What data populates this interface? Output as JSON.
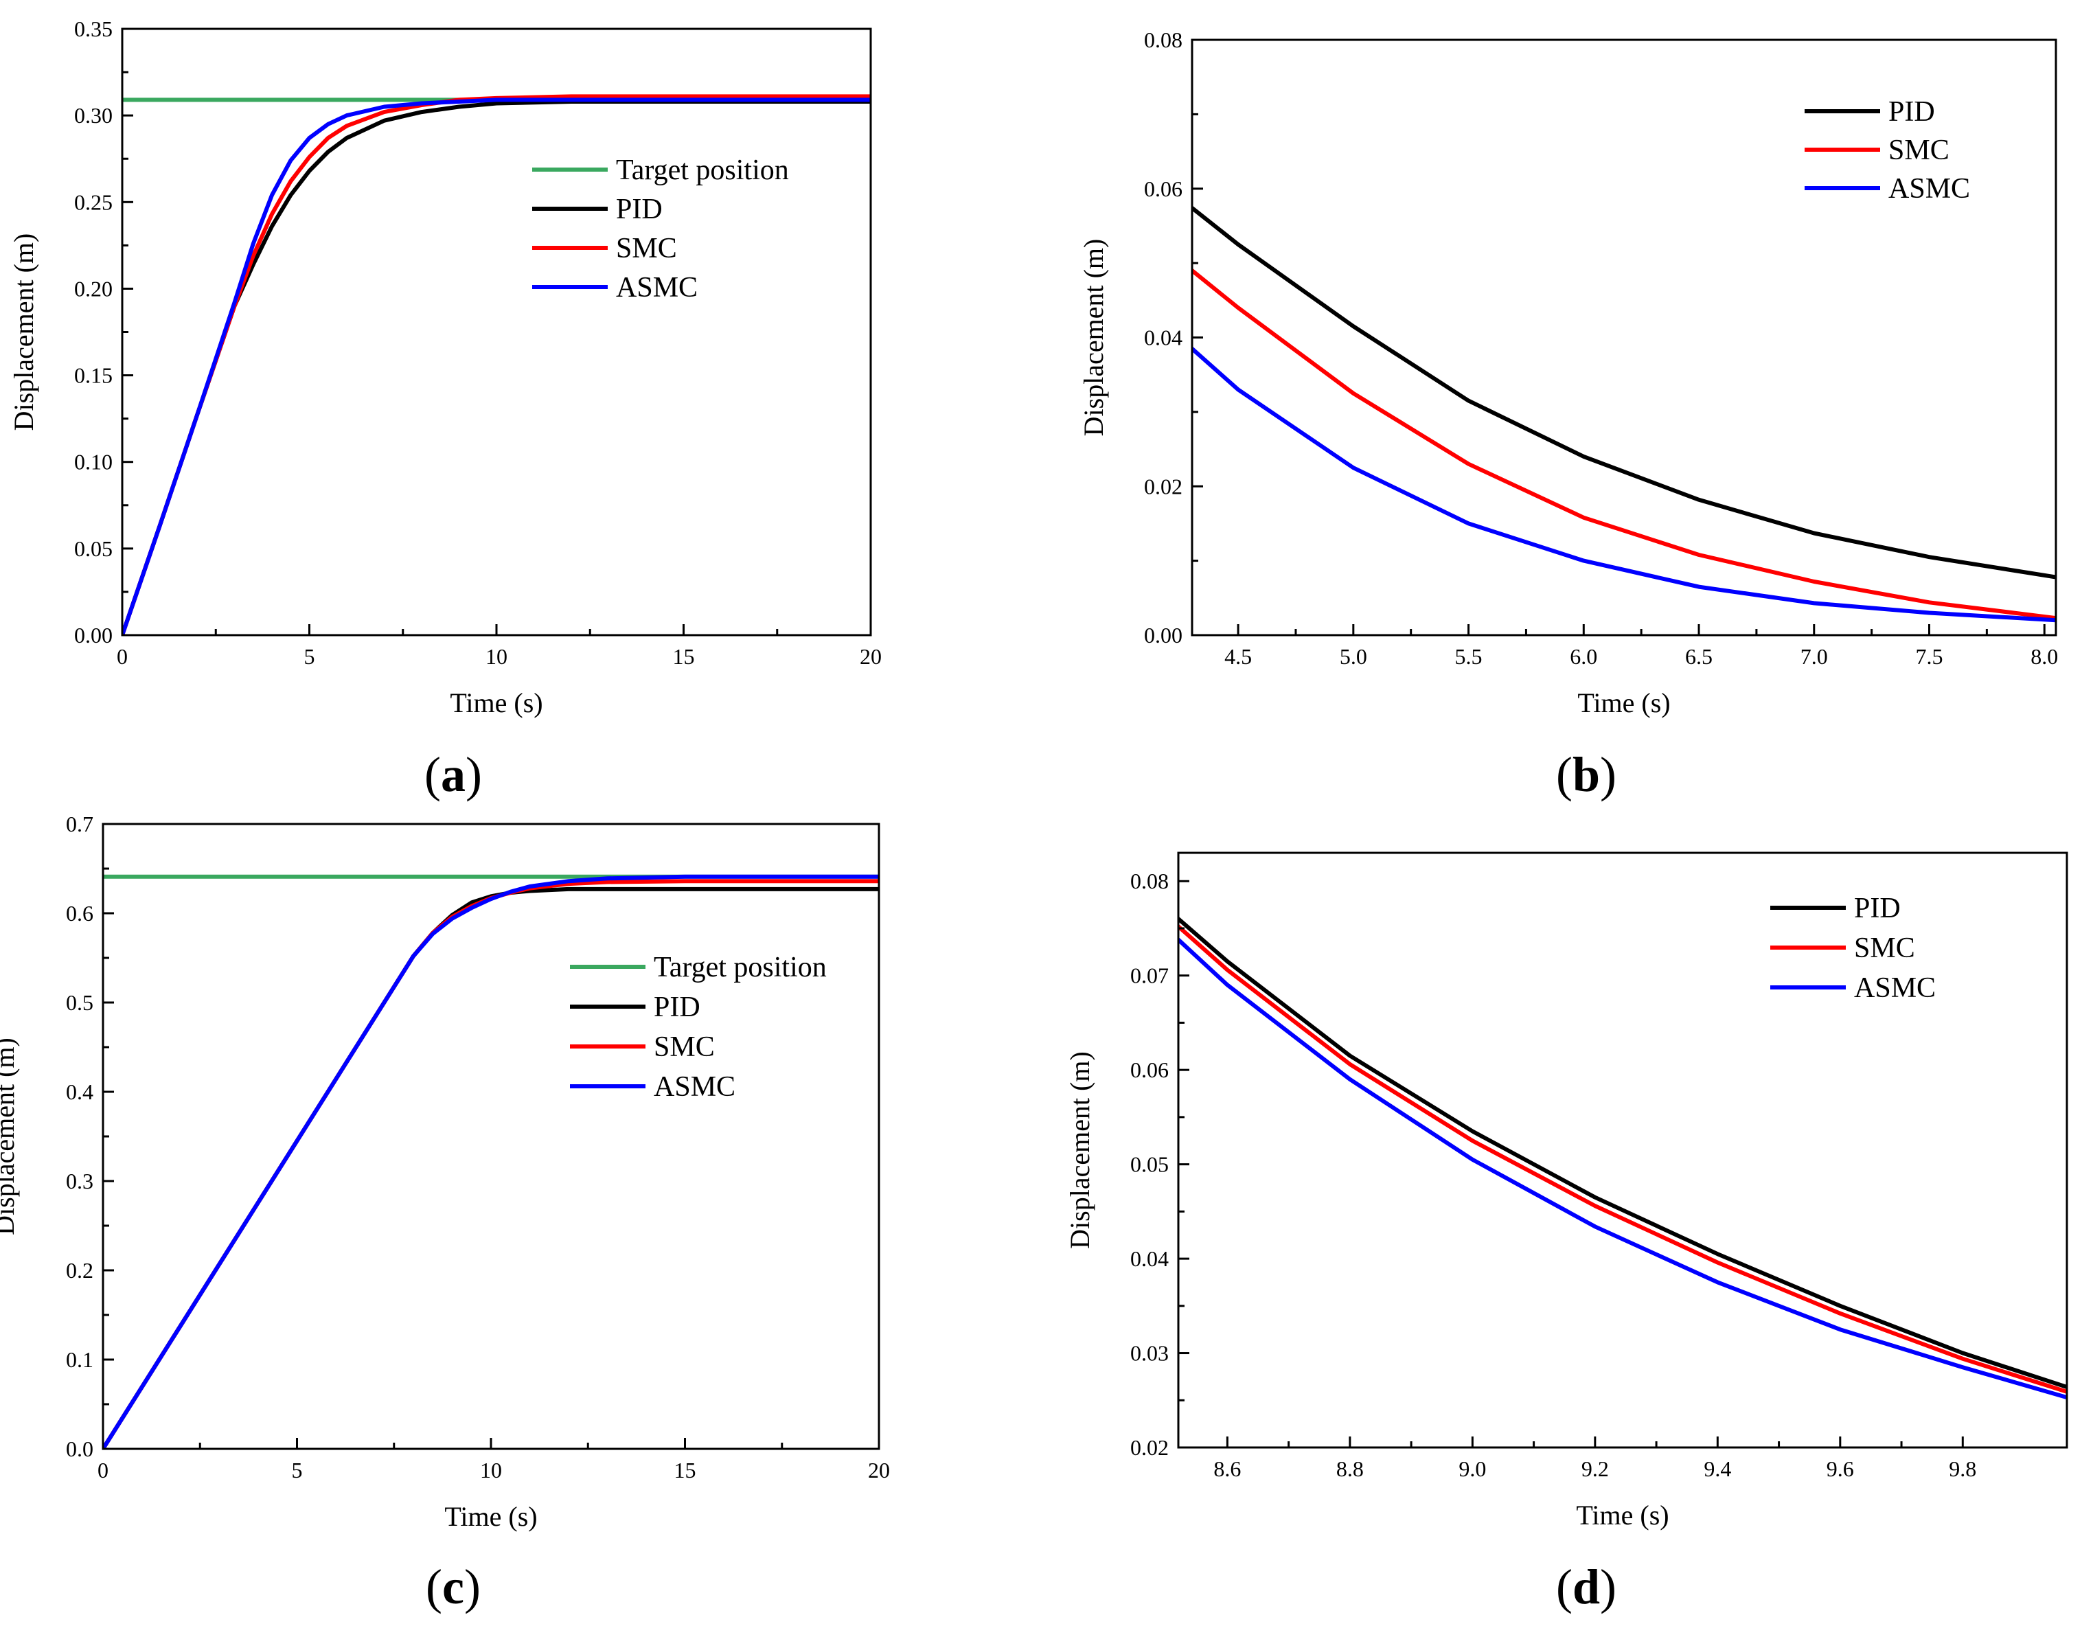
{
  "figure": {
    "panel_labels": [
      "a",
      "b",
      "c",
      "d"
    ]
  },
  "chart_data": [
    {
      "id": "a",
      "type": "line",
      "panel_label": "a",
      "xlabel": "Time (s)",
      "ylabel": "Displacement (m)",
      "xlim": [
        0,
        20
      ],
      "ylim": [
        0,
        0.35
      ],
      "xticks": [
        0,
        5,
        10,
        15,
        20
      ],
      "yticks": [
        0.0,
        0.05,
        0.1,
        0.15,
        0.2,
        0.25,
        0.3,
        0.35
      ],
      "xtick_labels": [
        "0",
        "5",
        "10",
        "15",
        "20"
      ],
      "ytick_labels": [
        "0.00",
        "0.05",
        "0.10",
        "0.15",
        "0.20",
        "0.25",
        "0.30",
        "0.35"
      ],
      "legend": {
        "position": "right-middle",
        "entries": [
          "Target position",
          "PID",
          "SMC",
          "ASMC"
        ]
      },
      "series": [
        {
          "name": "Target position",
          "color": "#3aa85f",
          "x": [
            0,
            20
          ],
          "y": [
            0.309,
            0.309
          ]
        },
        {
          "name": "PID",
          "color": "#000000",
          "x": [
            0,
            1,
            2,
            3,
            3.5,
            4,
            4.5,
            5,
            5.5,
            6,
            7,
            8,
            9,
            10,
            12,
            15,
            20
          ],
          "y": [
            0,
            0.063,
            0.127,
            0.19,
            0.214,
            0.236,
            0.254,
            0.268,
            0.279,
            0.287,
            0.297,
            0.302,
            0.305,
            0.307,
            0.308,
            0.308,
            0.308
          ]
        },
        {
          "name": "SMC",
          "color": "#ff0000",
          "x": [
            0,
            1,
            2,
            3,
            3.5,
            4,
            4.5,
            5,
            5.5,
            6,
            7,
            8,
            9,
            10,
            12,
            15,
            20
          ],
          "y": [
            0,
            0.063,
            0.127,
            0.19,
            0.219,
            0.243,
            0.262,
            0.276,
            0.287,
            0.294,
            0.302,
            0.306,
            0.309,
            0.31,
            0.311,
            0.311,
            0.311
          ]
        },
        {
          "name": "ASMC",
          "color": "#0000ff",
          "x": [
            0,
            1,
            2,
            3,
            3.5,
            4,
            4.5,
            5,
            5.5,
            6,
            7,
            8,
            9,
            10,
            12,
            15,
            20
          ],
          "y": [
            0,
            0.063,
            0.127,
            0.192,
            0.226,
            0.254,
            0.274,
            0.287,
            0.295,
            0.3,
            0.305,
            0.307,
            0.308,
            0.309,
            0.309,
            0.309,
            0.309
          ]
        }
      ]
    },
    {
      "id": "b",
      "type": "line",
      "panel_label": "b",
      "xlabel": "Time (s)",
      "ylabel": "Displacement (m)",
      "xlim": [
        4.3,
        8.05
      ],
      "ylim": [
        0,
        0.08
      ],
      "xticks": [
        4.5,
        5.0,
        5.5,
        6.0,
        6.5,
        7.0,
        7.5,
        8.0
      ],
      "yticks": [
        0.0,
        0.02,
        0.04,
        0.06,
        0.08
      ],
      "xtick_labels": [
        "4.5",
        "5.0",
        "5.5",
        "6.0",
        "6.5",
        "7.0",
        "7.5",
        "8.0"
      ],
      "ytick_labels": [
        "0.00",
        "0.02",
        "0.04",
        "0.06",
        "0.08"
      ],
      "legend": {
        "position": "top-right",
        "entries": [
          "PID",
          "SMC",
          "ASMC"
        ]
      },
      "series": [
        {
          "name": "PID",
          "color": "#000000",
          "x": [
            4.3,
            4.5,
            5.0,
            5.5,
            6.0,
            6.5,
            7.0,
            7.5,
            8.05
          ],
          "y": [
            0.0574,
            0.0525,
            0.0415,
            0.0315,
            0.024,
            0.0182,
            0.0137,
            0.0105,
            0.0078
          ]
        },
        {
          "name": "SMC",
          "color": "#ff0000",
          "x": [
            4.3,
            4.5,
            5.0,
            5.5,
            6.0,
            6.5,
            7.0,
            7.5,
            8.05
          ],
          "y": [
            0.049,
            0.044,
            0.0325,
            0.023,
            0.0158,
            0.0108,
            0.0072,
            0.0044,
            0.0023
          ]
        },
        {
          "name": "ASMC",
          "color": "#0000ff",
          "x": [
            4.3,
            4.5,
            5.0,
            5.5,
            6.0,
            6.5,
            7.0,
            7.5,
            8.05
          ],
          "y": [
            0.0385,
            0.033,
            0.0225,
            0.015,
            0.01,
            0.0065,
            0.0043,
            0.003,
            0.002
          ]
        }
      ]
    },
    {
      "id": "c",
      "type": "line",
      "panel_label": "c",
      "xlabel": "Time (s)",
      "ylabel": "Displacement (m)",
      "xlim": [
        0,
        20
      ],
      "ylim": [
        0,
        0.7
      ],
      "xticks": [
        0,
        5,
        10,
        15,
        20
      ],
      "yticks": [
        0.0,
        0.1,
        0.2,
        0.3,
        0.4,
        0.5,
        0.6,
        0.7
      ],
      "xtick_labels": [
        "0",
        "5",
        "10",
        "15",
        "20"
      ],
      "ytick_labels": [
        "0.0",
        "0.1",
        "0.2",
        "0.3",
        "0.4",
        "0.5",
        "0.6",
        "0.7"
      ],
      "legend": {
        "position": "right-middle",
        "entries": [
          "Target position",
          "PID",
          "SMC",
          "ASMC"
        ]
      },
      "series": [
        {
          "name": "Target position",
          "color": "#3aa85f",
          "x": [
            0,
            20
          ],
          "y": [
            0.641,
            0.641
          ]
        },
        {
          "name": "PID",
          "color": "#000000",
          "x": [
            0,
            2,
            4,
            6,
            8,
            8.5,
            9,
            9.5,
            10,
            10.5,
            11,
            12,
            13,
            15,
            20
          ],
          "y": [
            0,
            0.138,
            0.276,
            0.414,
            0.552,
            0.578,
            0.598,
            0.612,
            0.619,
            0.623,
            0.625,
            0.627,
            0.627,
            0.627,
            0.627
          ]
        },
        {
          "name": "SMC",
          "color": "#ff0000",
          "x": [
            0,
            2,
            4,
            6,
            8,
            8.5,
            9,
            9.5,
            10,
            10.5,
            11,
            12,
            13,
            15,
            20
          ],
          "y": [
            0,
            0.138,
            0.276,
            0.414,
            0.552,
            0.578,
            0.596,
            0.608,
            0.617,
            0.623,
            0.628,
            0.633,
            0.635,
            0.636,
            0.636
          ]
        },
        {
          "name": "ASMC",
          "color": "#0000ff",
          "x": [
            0,
            2,
            4,
            6,
            8,
            8.5,
            9,
            9.5,
            10,
            10.5,
            11,
            12,
            13,
            15,
            20
          ],
          "y": [
            0,
            0.138,
            0.276,
            0.414,
            0.552,
            0.577,
            0.594,
            0.606,
            0.616,
            0.624,
            0.63,
            0.636,
            0.639,
            0.641,
            0.641
          ]
        }
      ]
    },
    {
      "id": "d",
      "type": "line",
      "panel_label": "d",
      "xlabel": "Time (s)",
      "ylabel": "Displacement (m)",
      "xlim": [
        8.52,
        9.97
      ],
      "ylim": [
        0.02,
        0.083
      ],
      "xticks": [
        8.6,
        8.8,
        9.0,
        9.2,
        9.4,
        9.6,
        9.8
      ],
      "yticks": [
        0.02,
        0.03,
        0.04,
        0.05,
        0.06,
        0.07,
        0.08
      ],
      "xtick_labels": [
        "8.6",
        "8.8",
        "9.0",
        "9.2",
        "9.4",
        "9.6",
        "9.8"
      ],
      "ytick_labels": [
        "0.02",
        "0.03",
        "0.04",
        "0.05",
        "0.06",
        "0.07",
        "0.08"
      ],
      "legend": {
        "position": "top-right",
        "entries": [
          "PID",
          "SMC",
          "ASMC"
        ]
      },
      "series": [
        {
          "name": "PID",
          "color": "#000000",
          "x": [
            8.52,
            8.6,
            8.8,
            9.0,
            9.2,
            9.4,
            9.6,
            9.8,
            9.97
          ],
          "y": [
            0.076,
            0.0715,
            0.0615,
            0.0535,
            0.0465,
            0.0405,
            0.035,
            0.03,
            0.0264
          ]
        },
        {
          "name": "SMC",
          "color": "#ff0000",
          "x": [
            8.52,
            8.6,
            8.8,
            9.0,
            9.2,
            9.4,
            9.6,
            9.8,
            9.97
          ],
          "y": [
            0.0752,
            0.0706,
            0.0606,
            0.0525,
            0.0456,
            0.0396,
            0.0342,
            0.0294,
            0.0259
          ]
        },
        {
          "name": "ASMC",
          "color": "#0000ff",
          "x": [
            8.52,
            8.6,
            8.8,
            9.0,
            9.2,
            9.4,
            9.6,
            9.8,
            9.97
          ],
          "y": [
            0.0738,
            0.069,
            0.059,
            0.0505,
            0.0434,
            0.0375,
            0.0325,
            0.0285,
            0.0253
          ]
        }
      ]
    }
  ]
}
